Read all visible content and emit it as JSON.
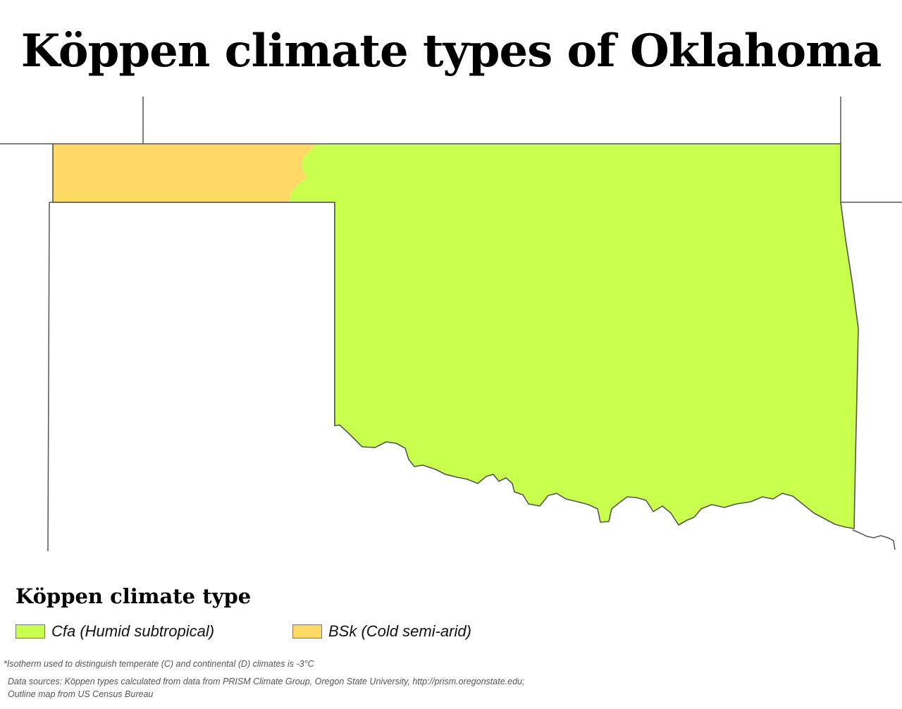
{
  "title": "Köppen climate types of Oklahoma",
  "legend": {
    "title": "Köppen climate type",
    "items": [
      {
        "label": "Cfa (Humid subtropical)",
        "color": "#c9ff4d"
      },
      {
        "label": "BSk (Cold semi-arid)",
        "color": "#ffd966"
      }
    ]
  },
  "colors": {
    "cfa": "#c9ff4d",
    "bsk": "#ffd966",
    "border": "#555555"
  },
  "footnote": "*Isotherm used to distinguish temperate (C) and continental (D) climates is -3°C",
  "sources": {
    "line1": "Data  sources:  Köppen  types  calculated  from  data  from  PRISM  Climate  Group,  Oregon  State  University,  http://prism.oregonstate.edu;",
    "line2": "Outline map from US Census Bureau"
  }
}
